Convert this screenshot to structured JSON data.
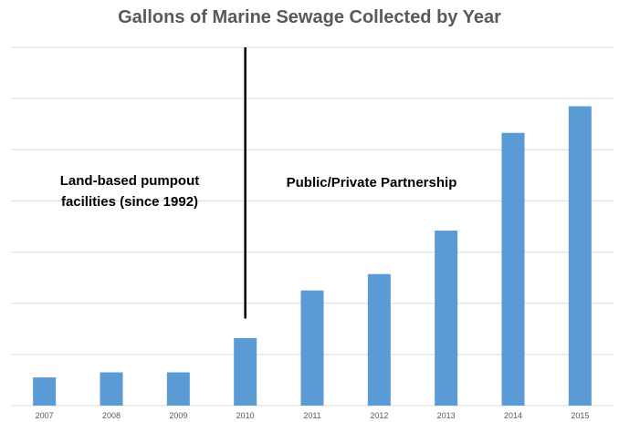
{
  "chart_data": {
    "type": "bar",
    "title": "Gallons of Marine Sewage Collected by Year",
    "xlabel": "",
    "ylabel": "",
    "categories": [
      "2007",
      "2008",
      "2009",
      "2010",
      "2011",
      "2012",
      "2013",
      "2014",
      "2015"
    ],
    "series": [
      {
        "values": [
          0.55,
          0.65,
          0.65,
          1.32,
          2.25,
          2.57,
          3.42,
          5.33,
          5.85
        ]
      }
    ],
    "ylim": [
      0,
      7
    ],
    "grid": true,
    "y_tick_labels_shown": false,
    "bar_color": "#5B9BD5",
    "grid_color": "#D9D9D9",
    "divider": {
      "x_between": [
        "2009",
        "2010"
      ],
      "top_value": 7,
      "bottom_value": 1.7,
      "color": "#000000"
    },
    "annotations": [
      {
        "id": "land-based",
        "lines": [
          "Land-based pumpout",
          "facilities (since 1992)"
        ]
      },
      {
        "id": "partnership",
        "lines": [
          "Public/Private Partnership"
        ]
      }
    ]
  }
}
